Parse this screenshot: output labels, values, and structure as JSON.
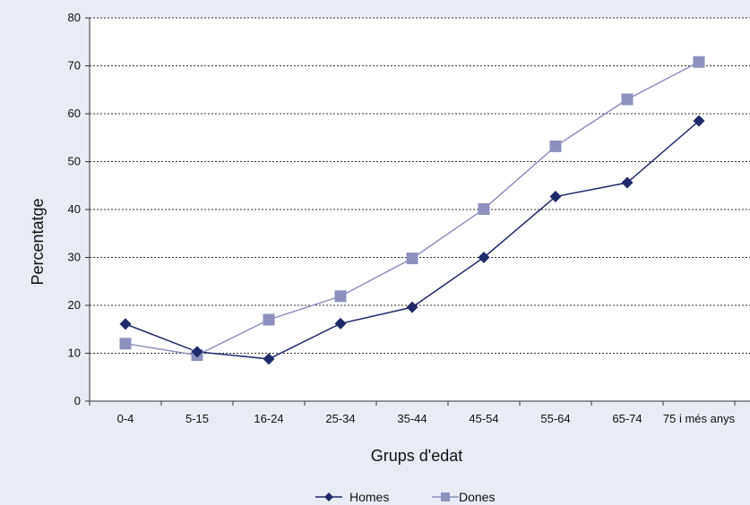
{
  "chart_data": {
    "type": "line",
    "xlabel": "Grups d'edat",
    "ylabel": "Percentatge",
    "ylim": [
      0,
      80
    ],
    "yticks": [
      "0",
      "10",
      "20",
      "30",
      "40",
      "50",
      "60",
      "70",
      "80"
    ],
    "categories": [
      "0-4",
      "5-15",
      "16-24",
      "25-34",
      "35-44",
      "45-54",
      "55-64",
      "65-74",
      "75 i més anys"
    ],
    "grid": "horizontal dotted",
    "legend_position": "bottom",
    "series": [
      {
        "name": "Homes",
        "color": "#1f2a6b",
        "marker": "diamond",
        "values": [
          16.1,
          10.3,
          8.8,
          16.2,
          19.6,
          30.0,
          42.7,
          45.6,
          58.5
        ]
      },
      {
        "name": "Dones",
        "color": "#8e91bf",
        "marker": "square",
        "values": [
          12.0,
          9.6,
          17.0,
          21.9,
          29.8,
          40.1,
          53.2,
          63.0,
          70.8
        ]
      }
    ]
  }
}
